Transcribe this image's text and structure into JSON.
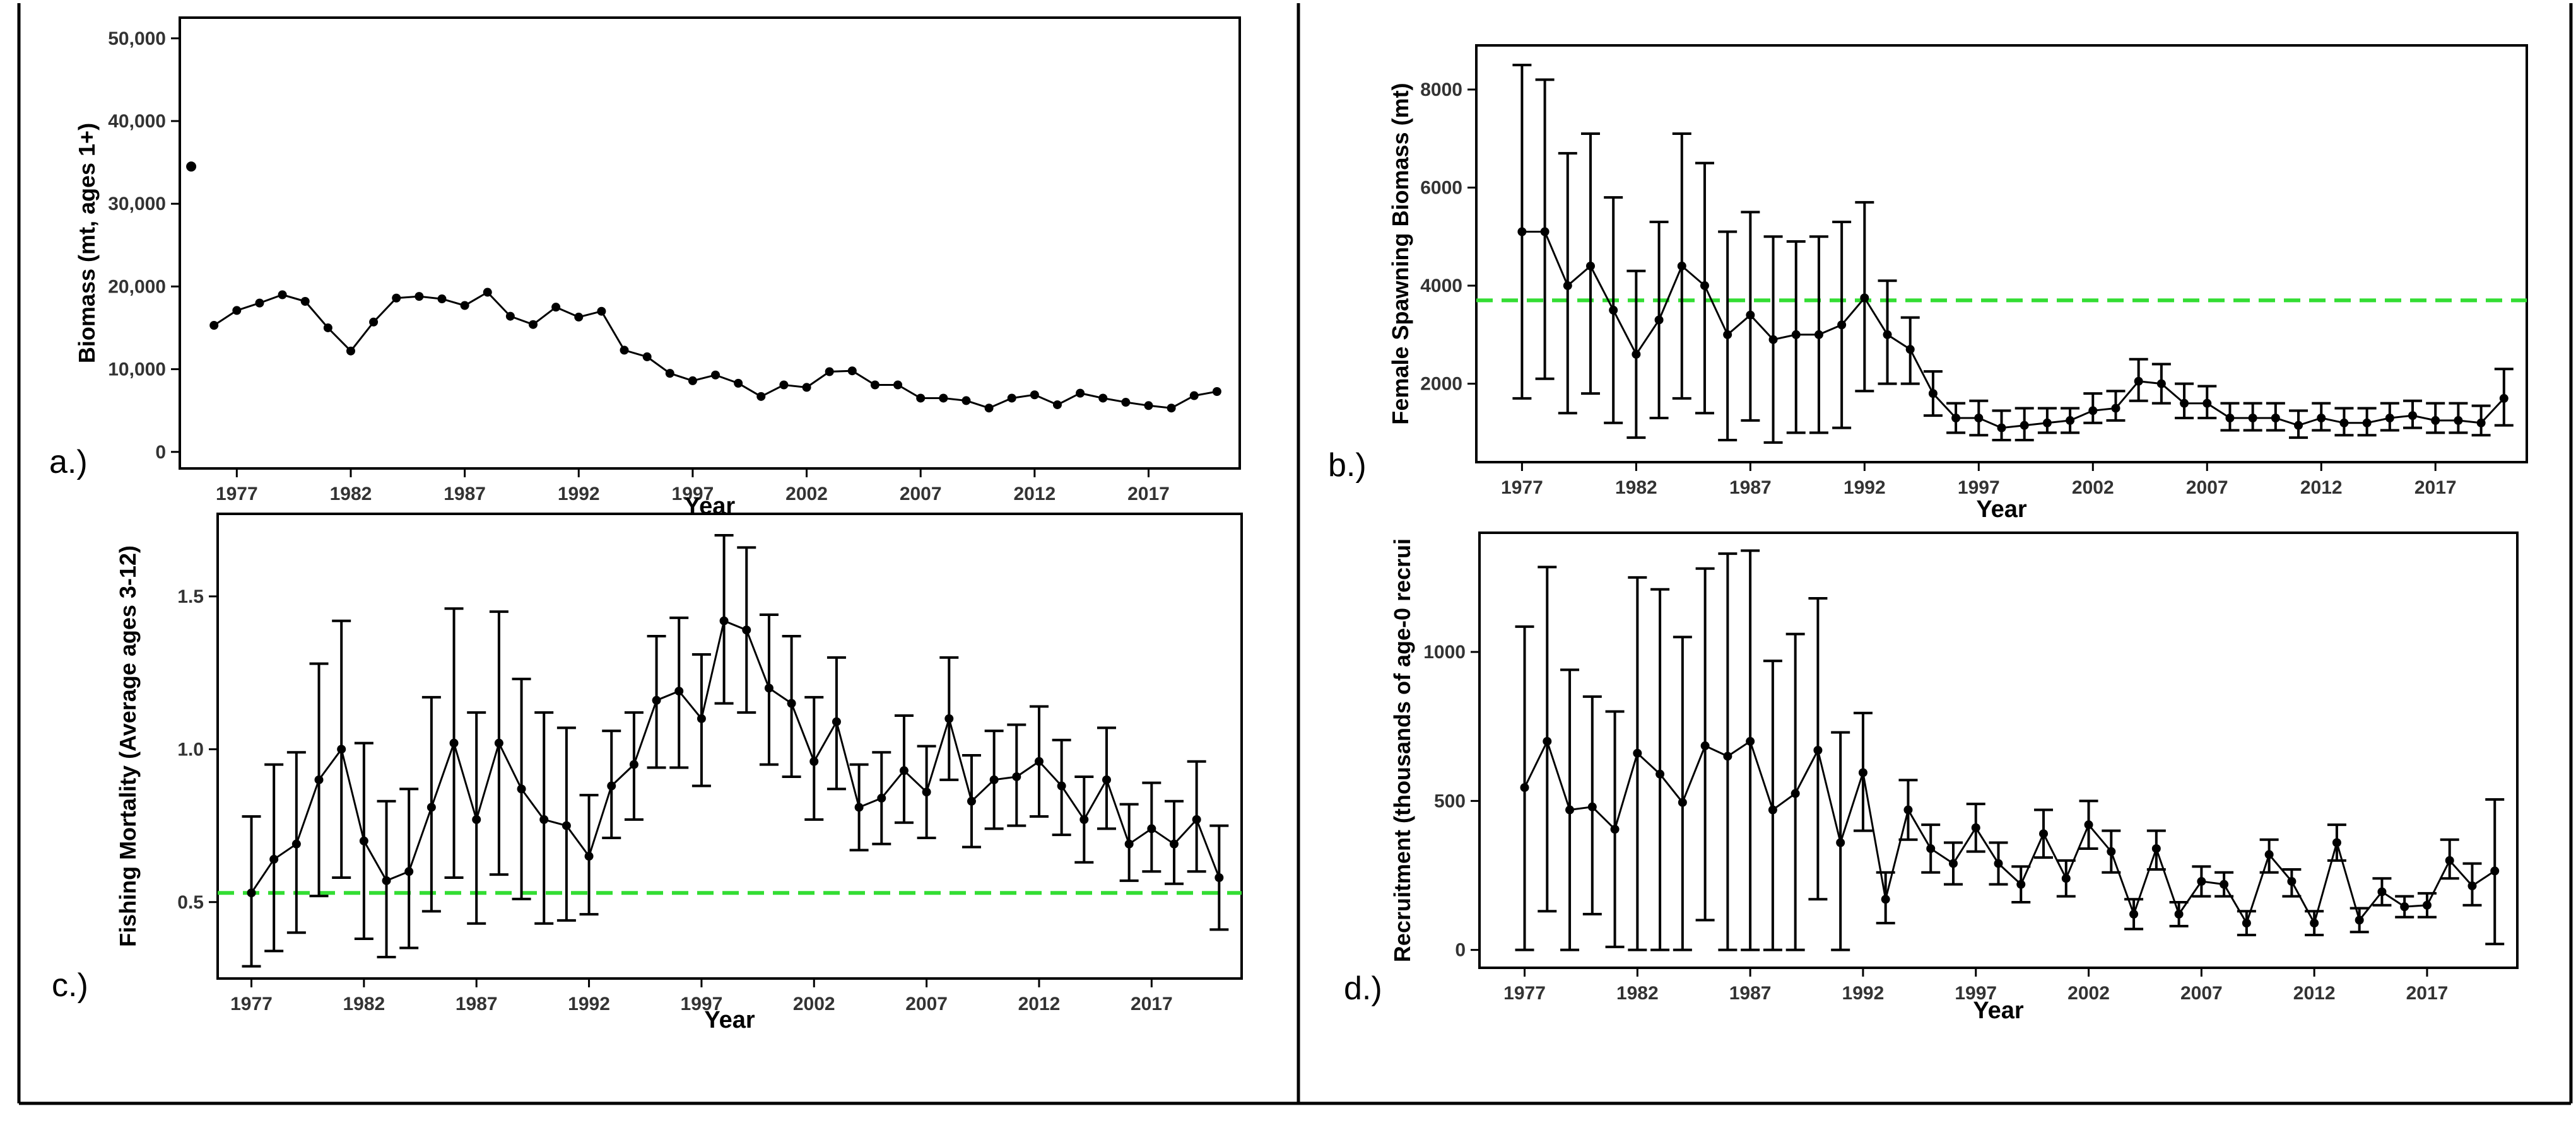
{
  "colors": {
    "series": "#000000",
    "reference": "#33dd33",
    "frame": "#000000"
  },
  "panels": [
    {
      "letter": "a.)"
    },
    {
      "letter": "b.)"
    },
    {
      "letter": "c.)"
    },
    {
      "letter": "d.)"
    }
  ],
  "chart_data": [
    {
      "type": "line",
      "xlabel": "Year",
      "ylabel": "Biomass (mt, ages 1+)",
      "xlim": [
        1974.5,
        2021
      ],
      "ylim": [
        -2000,
        52500
      ],
      "xticks": [
        1977,
        1982,
        1987,
        1992,
        1997,
        2002,
        2007,
        2012,
        2017
      ],
      "yticks": [
        0,
        10000,
        20000,
        30000,
        40000,
        50000
      ],
      "ytick_labels": [
        "0",
        "10,000",
        "20,000",
        "30,000",
        "40,000",
        "50,000"
      ],
      "grid": false,
      "legend": "none",
      "errorbars": false,
      "isolated_point": {
        "x": 1975,
        "y": 34500
      },
      "x": [
        1976,
        1977,
        1978,
        1979,
        1980,
        1981,
        1982,
        1983,
        1984,
        1985,
        1986,
        1987,
        1988,
        1989,
        1990,
        1991,
        1992,
        1993,
        1994,
        1995,
        1996,
        1997,
        1998,
        1999,
        2000,
        2001,
        2002,
        2003,
        2004,
        2005,
        2006,
        2007,
        2008,
        2009,
        2010,
        2011,
        2012,
        2013,
        2014,
        2015,
        2016,
        2017,
        2018,
        2019,
        2020
      ],
      "y": [
        15300,
        17100,
        18000,
        19000,
        18200,
        15000,
        12200,
        15700,
        18600,
        18800,
        18500,
        17700,
        19300,
        16400,
        15400,
        17500,
        16300,
        17000,
        12300,
        11500,
        9500,
        8600,
        9300,
        8300,
        6700,
        8100,
        7800,
        9700,
        9800,
        8100,
        8100,
        6500,
        6500,
        6200,
        5300,
        6500,
        6900,
        5700,
        7100,
        6500,
        6000,
        5600,
        5300,
        6800,
        7300
      ]
    },
    {
      "type": "line",
      "xlabel": "Year",
      "ylabel": "Female Spawning Biomass (mt)",
      "xlim": [
        1975,
        2021
      ],
      "ylim": [
        400,
        8900
      ],
      "xticks": [
        1977,
        1982,
        1987,
        1992,
        1997,
        2002,
        2007,
        2012,
        2017
      ],
      "yticks": [
        2000,
        4000,
        6000,
        8000
      ],
      "ytick_labels": [
        "2000",
        "4000",
        "6000",
        "8000"
      ],
      "grid": false,
      "legend": "none",
      "errorbars": true,
      "reference_line": 3700,
      "x": [
        1977,
        1978,
        1979,
        1980,
        1981,
        1982,
        1983,
        1984,
        1985,
        1986,
        1987,
        1988,
        1989,
        1990,
        1991,
        1992,
        1993,
        1994,
        1995,
        1996,
        1997,
        1998,
        1999,
        2000,
        2001,
        2002,
        2003,
        2004,
        2005,
        2006,
        2007,
        2008,
        2009,
        2010,
        2011,
        2012,
        2013,
        2014,
        2015,
        2016,
        2017,
        2018,
        2019,
        2020
      ],
      "y": [
        5100,
        5100,
        4000,
        4400,
        3500,
        2600,
        3300,
        4400,
        4000,
        3000,
        3400,
        2900,
        3000,
        3000,
        3200,
        3750,
        3000,
        2700,
        1800,
        1300,
        1300,
        1100,
        1150,
        1200,
        1250,
        1450,
        1500,
        2050,
        2000,
        1600,
        1600,
        1300,
        1300,
        1300,
        1150,
        1300,
        1200,
        1200,
        1300,
        1350,
        1250,
        1250,
        1200,
        1700
      ],
      "lower": [
        1700,
        2100,
        1400,
        1800,
        1200,
        900,
        1300,
        1700,
        1400,
        850,
        1250,
        800,
        1000,
        1000,
        1100,
        1850,
        2000,
        2000,
        1350,
        1000,
        950,
        850,
        850,
        1000,
        1000,
        1200,
        1250,
        1650,
        1600,
        1300,
        1300,
        1050,
        1050,
        1050,
        900,
        1050,
        950,
        950,
        1050,
        1100,
        1000,
        1000,
        950,
        1150
      ],
      "upper": [
        8500,
        8200,
        6700,
        7100,
        5800,
        4300,
        5300,
        7100,
        6500,
        5100,
        5500,
        5000,
        4900,
        5000,
        5300,
        5700,
        4100,
        3350,
        2250,
        1600,
        1650,
        1450,
        1500,
        1500,
        1500,
        1800,
        1850,
        2500,
        2400,
        2000,
        1950,
        1600,
        1600,
        1600,
        1450,
        1600,
        1500,
        1500,
        1600,
        1650,
        1600,
        1600,
        1550,
        2300
      ]
    },
    {
      "type": "line",
      "xlabel": "Year",
      "ylabel": "Fishing Mortality (Average ages 3-12)",
      "xlim": [
        1975.5,
        2021
      ],
      "ylim": [
        0.25,
        1.77
      ],
      "xticks": [
        1977,
        1982,
        1987,
        1992,
        1997,
        2002,
        2007,
        2012,
        2017
      ],
      "yticks": [
        0.5,
        1.0,
        1.5
      ],
      "ytick_labels": [
        "0.5",
        "1.0",
        "1.5"
      ],
      "grid": false,
      "legend": "none",
      "errorbars": true,
      "reference_line": 0.53,
      "x": [
        1977,
        1978,
        1979,
        1980,
        1981,
        1982,
        1983,
        1984,
        1985,
        1986,
        1987,
        1988,
        1989,
        1990,
        1991,
        1992,
        1993,
        1994,
        1995,
        1996,
        1997,
        1998,
        1999,
        2000,
        2001,
        2002,
        2003,
        2004,
        2005,
        2006,
        2007,
        2008,
        2009,
        2010,
        2011,
        2012,
        2013,
        2014,
        2015,
        2016,
        2017,
        2018,
        2019,
        2020
      ],
      "y": [
        0.53,
        0.64,
        0.69,
        0.9,
        1.0,
        0.7,
        0.57,
        0.6,
        0.81,
        1.02,
        0.77,
        1.02,
        0.87,
        0.77,
        0.75,
        0.65,
        0.88,
        0.95,
        1.16,
        1.19,
        1.1,
        1.42,
        1.39,
        1.2,
        1.15,
        0.96,
        1.09,
        0.81,
        0.84,
        0.93,
        0.86,
        1.1,
        0.83,
        0.9,
        0.91,
        0.96,
        0.88,
        0.77,
        0.9,
        0.69,
        0.74,
        0.69,
        0.77,
        0.58
      ],
      "lower": [
        0.29,
        0.34,
        0.4,
        0.52,
        0.58,
        0.38,
        0.32,
        0.35,
        0.47,
        0.58,
        0.43,
        0.59,
        0.51,
        0.43,
        0.44,
        0.46,
        0.71,
        0.77,
        0.94,
        0.94,
        0.88,
        1.15,
        1.12,
        0.95,
        0.91,
        0.77,
        0.87,
        0.67,
        0.69,
        0.76,
        0.71,
        0.9,
        0.68,
        0.74,
        0.75,
        0.78,
        0.72,
        0.63,
        0.74,
        0.57,
        0.6,
        0.56,
        0.6,
        0.41
      ],
      "upper": [
        0.78,
        0.95,
        0.99,
        1.28,
        1.42,
        1.02,
        0.83,
        0.87,
        1.17,
        1.46,
        1.12,
        1.45,
        1.23,
        1.12,
        1.07,
        0.85,
        1.06,
        1.12,
        1.37,
        1.43,
        1.31,
        1.7,
        1.66,
        1.44,
        1.37,
        1.17,
        1.3,
        0.95,
        0.99,
        1.11,
        1.01,
        1.3,
        0.98,
        1.06,
        1.08,
        1.14,
        1.03,
        0.91,
        1.07,
        0.82,
        0.89,
        0.83,
        0.96,
        0.75
      ]
    },
    {
      "type": "line",
      "xlabel": "Year",
      "ylabel": "Recruitment (thousands of age-0 recrui",
      "xlim": [
        1975,
        2021
      ],
      "ylim": [
        -60,
        1400
      ],
      "xticks": [
        1977,
        1982,
        1987,
        1992,
        1997,
        2002,
        2007,
        2012,
        2017
      ],
      "yticks": [
        0,
        500,
        1000
      ],
      "ytick_labels": [
        "0",
        "500",
        "1000"
      ],
      "grid": false,
      "legend": "none",
      "errorbars": true,
      "x": [
        1977,
        1978,
        1979,
        1980,
        1981,
        1982,
        1983,
        1984,
        1985,
        1986,
        1987,
        1988,
        1989,
        1990,
        1991,
        1992,
        1993,
        1994,
        1995,
        1996,
        1997,
        1998,
        1999,
        2000,
        2001,
        2002,
        2003,
        2004,
        2005,
        2006,
        2007,
        2008,
        2009,
        2010,
        2011,
        2012,
        2013,
        2014,
        2015,
        2016,
        2017,
        2018,
        2019,
        2020
      ],
      "y": [
        545,
        700,
        470,
        480,
        405,
        660,
        590,
        495,
        685,
        650,
        700,
        470,
        525,
        670,
        360,
        595,
        170,
        470,
        340,
        290,
        410,
        290,
        220,
        390,
        240,
        420,
        330,
        120,
        340,
        120,
        230,
        220,
        90,
        320,
        230,
        90,
        360,
        100,
        195,
        145,
        150,
        300,
        215,
        265
      ],
      "lower": [
        0,
        130,
        0,
        120,
        10,
        0,
        0,
        0,
        100,
        0,
        0,
        0,
        0,
        170,
        0,
        400,
        90,
        370,
        260,
        220,
        330,
        220,
        160,
        310,
        180,
        340,
        260,
        70,
        270,
        80,
        180,
        180,
        50,
        260,
        180,
        50,
        300,
        60,
        150,
        110,
        110,
        240,
        150,
        20
      ],
      "upper": [
        1085,
        1285,
        940,
        850,
        800,
        1250,
        1210,
        1050,
        1280,
        1330,
        1340,
        970,
        1060,
        1180,
        730,
        795,
        260,
        570,
        420,
        360,
        490,
        360,
        280,
        470,
        300,
        500,
        400,
        170,
        400,
        160,
        280,
        260,
        130,
        370,
        270,
        130,
        420,
        140,
        240,
        180,
        190,
        370,
        290,
        505
      ]
    }
  ]
}
